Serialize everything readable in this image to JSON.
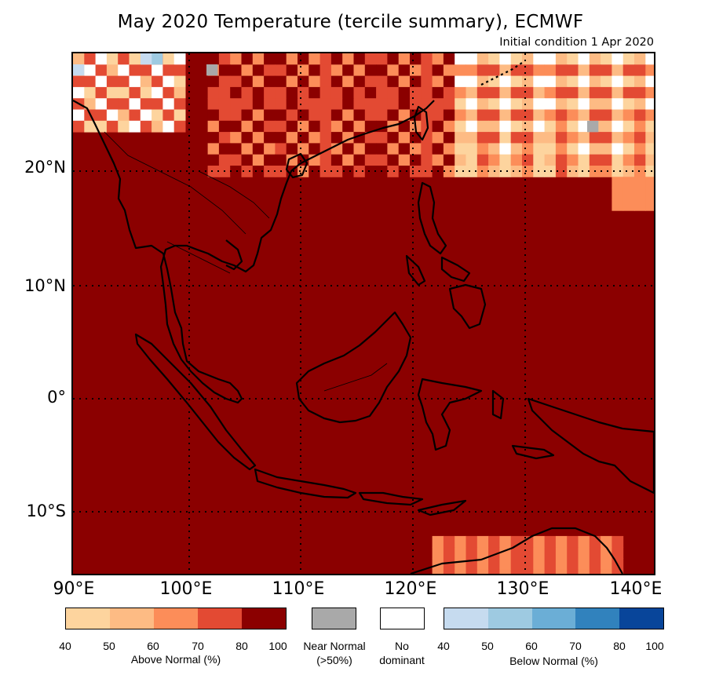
{
  "title": "May 2020 Temperature (tercile summary), ECMWF",
  "subtitle": "Initial condition 1 Apr 2020",
  "map": {
    "region": "Southeast Asia",
    "extent": {
      "lon_min": 90,
      "lon_max": 142,
      "lat_min": -15.5,
      "lat_max": 30
    },
    "lat_ticks": [
      "20°N",
      "10°N",
      "0°",
      "10°S"
    ],
    "lon_ticks": [
      "90°E",
      "100°E",
      "110°E",
      "120°E",
      "130°E",
      "140°E"
    ],
    "dominant_category": "Above Normal 80-100%",
    "background_color": "#8b0000"
  },
  "legend": {
    "above": {
      "label": "Above Normal (%)",
      "ticks": [
        "40",
        "50",
        "60",
        "70",
        "80",
        "100"
      ],
      "colors": [
        "#fdd49e",
        "#fdbb84",
        "#fc8d59",
        "#e34a33",
        "#8b0000"
      ]
    },
    "near": {
      "label_line1": "Near Normal",
      "label_line2": "(>50%)",
      "color": "#a9a9a9"
    },
    "none": {
      "label_line1": "No",
      "label_line2": "dominant",
      "color": "#ffffff"
    },
    "below": {
      "label": "Below Normal (%)",
      "ticks": [
        "40",
        "50",
        "60",
        "70",
        "80",
        "100"
      ],
      "colors": [
        "#c6dbef",
        "#9ecae1",
        "#6baed6",
        "#3182bd",
        "#08459a"
      ]
    }
  }
}
